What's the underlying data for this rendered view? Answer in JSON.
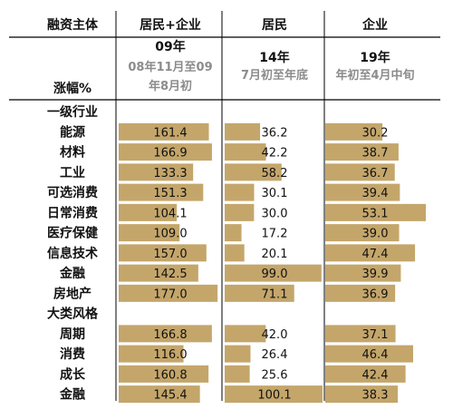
{
  "header": {
    "corner_label": "融资主体",
    "unit_label": "涨幅%"
  },
  "colors": {
    "bar": "#c4a66b",
    "subtitle_gray": "#8c8c8c",
    "rule": "#000000"
  },
  "chart_data": {
    "type": "bar",
    "columns": [
      {
        "name": "居民+企业",
        "period_year": "09年",
        "period_desc": [
          "08年11月至09",
          "年8月初"
        ]
      },
      {
        "name": "居民",
        "period_year": "14年",
        "period_desc": [
          "7月初至年底"
        ]
      },
      {
        "name": "企业",
        "period_year": "19年",
        "period_desc": [
          "年初至4月中旬"
        ]
      }
    ],
    "sections": [
      {
        "title": "一级行业",
        "rows": [
          {
            "label": "能源",
            "values": [
              161.4,
              36.2,
              30.2
            ]
          },
          {
            "label": "材料",
            "values": [
              166.9,
              42.2,
              38.7
            ]
          },
          {
            "label": "工业",
            "values": [
              133.3,
              58.2,
              36.7
            ]
          },
          {
            "label": "可选消费",
            "values": [
              151.3,
              30.1,
              39.4
            ]
          },
          {
            "label": "日常消费",
            "values": [
              104.1,
              30.0,
              53.1
            ]
          },
          {
            "label": "医疗保健",
            "values": [
              109.0,
              17.2,
              39.0
            ]
          },
          {
            "label": "信息技术",
            "values": [
              157.0,
              20.1,
              47.4
            ]
          },
          {
            "label": "金融",
            "values": [
              142.5,
              99.0,
              39.9
            ]
          },
          {
            "label": "房地产",
            "values": [
              177.0,
              71.1,
              36.9
            ]
          }
        ]
      },
      {
        "title": "大类风格",
        "rows": [
          {
            "label": "周期",
            "values": [
              166.8,
              42.0,
              37.1
            ]
          },
          {
            "label": "消费",
            "values": [
              116.0,
              26.4,
              46.4
            ]
          },
          {
            "label": "成长",
            "values": [
              160.8,
              25.6,
              42.4
            ]
          },
          {
            "label": "金融",
            "values": [
              145.4,
              100.1,
              38.3
            ]
          }
        ]
      }
    ]
  }
}
